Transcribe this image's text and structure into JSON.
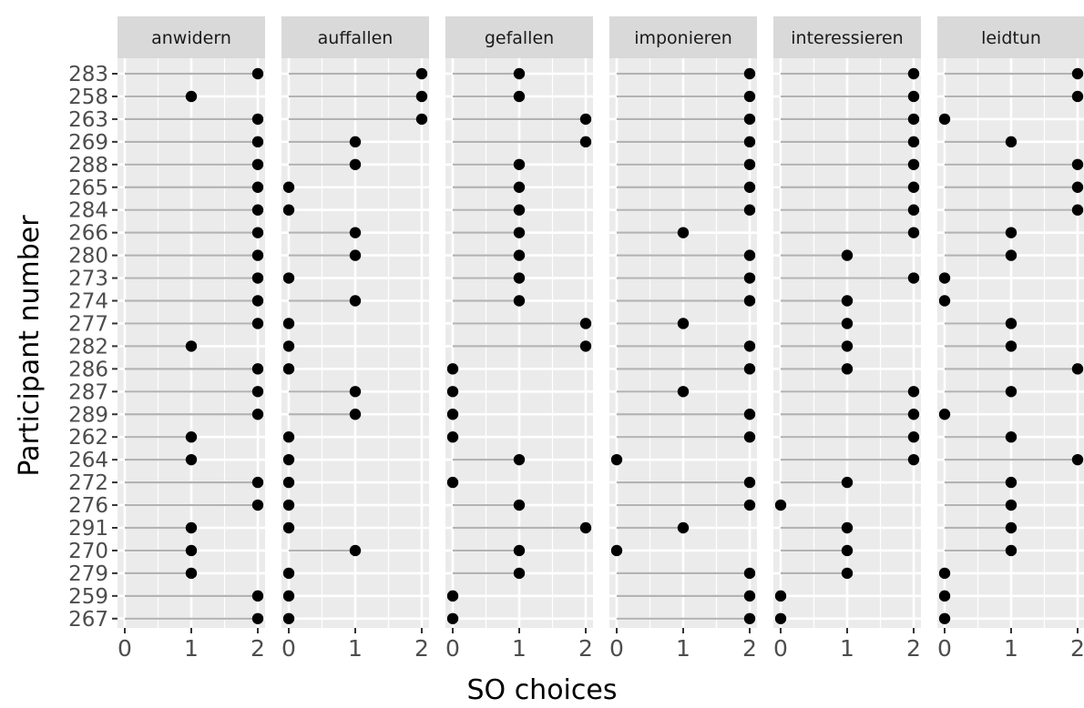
{
  "chart_data": {
    "type": "lollipop",
    "xlabel": "SO choices",
    "ylabel": "Participant number",
    "xlim": [
      0,
      2
    ],
    "x_ticks": [
      "0",
      "1",
      "2"
    ],
    "participants": [
      "283",
      "258",
      "263",
      "269",
      "288",
      "265",
      "284",
      "266",
      "280",
      "273",
      "274",
      "277",
      "282",
      "286",
      "287",
      "289",
      "262",
      "264",
      "272",
      "276",
      "291",
      "270",
      "279",
      "259",
      "267"
    ],
    "facets": [
      {
        "name": "anwidern",
        "values": [
          2,
          1,
          2,
          2,
          2,
          2,
          2,
          2,
          2,
          2,
          2,
          2,
          1,
          2,
          2,
          2,
          1,
          1,
          2,
          2,
          1,
          1,
          1,
          2,
          2
        ]
      },
      {
        "name": "auffallen",
        "values": [
          2,
          2,
          2,
          1,
          1,
          0,
          0,
          1,
          1,
          0,
          1,
          0,
          0,
          0,
          1,
          1,
          0,
          0,
          0,
          0,
          0,
          1,
          0,
          0,
          0
        ]
      },
      {
        "name": "gefallen",
        "values": [
          1,
          1,
          2,
          2,
          1,
          1,
          1,
          1,
          1,
          1,
          1,
          2,
          2,
          0,
          0,
          0,
          0,
          1,
          0,
          1,
          2,
          1,
          1,
          0,
          0
        ]
      },
      {
        "name": "imponieren",
        "values": [
          2,
          2,
          2,
          2,
          2,
          2,
          2,
          1,
          2,
          2,
          2,
          1,
          2,
          2,
          1,
          2,
          2,
          0,
          2,
          2,
          1,
          0,
          2,
          2,
          2
        ]
      },
      {
        "name": "interessieren",
        "values": [
          2,
          2,
          2,
          2,
          2,
          2,
          2,
          2,
          1,
          2,
          1,
          1,
          1,
          1,
          2,
          2,
          2,
          2,
          1,
          0,
          1,
          1,
          1,
          0,
          0
        ]
      },
      {
        "name": "leidtun",
        "values": [
          2,
          2,
          0,
          1,
          2,
          2,
          2,
          1,
          1,
          0,
          0,
          1,
          1,
          2,
          1,
          0,
          1,
          2,
          1,
          1,
          1,
          1,
          0,
          0,
          0
        ]
      }
    ],
    "grid": true,
    "colors": {
      "panel_bg": "#ebebeb",
      "strip_bg": "#d9d9d9",
      "grid_line": "#ffffff",
      "segment": "#b3b3b3",
      "point": "#000000"
    }
  }
}
